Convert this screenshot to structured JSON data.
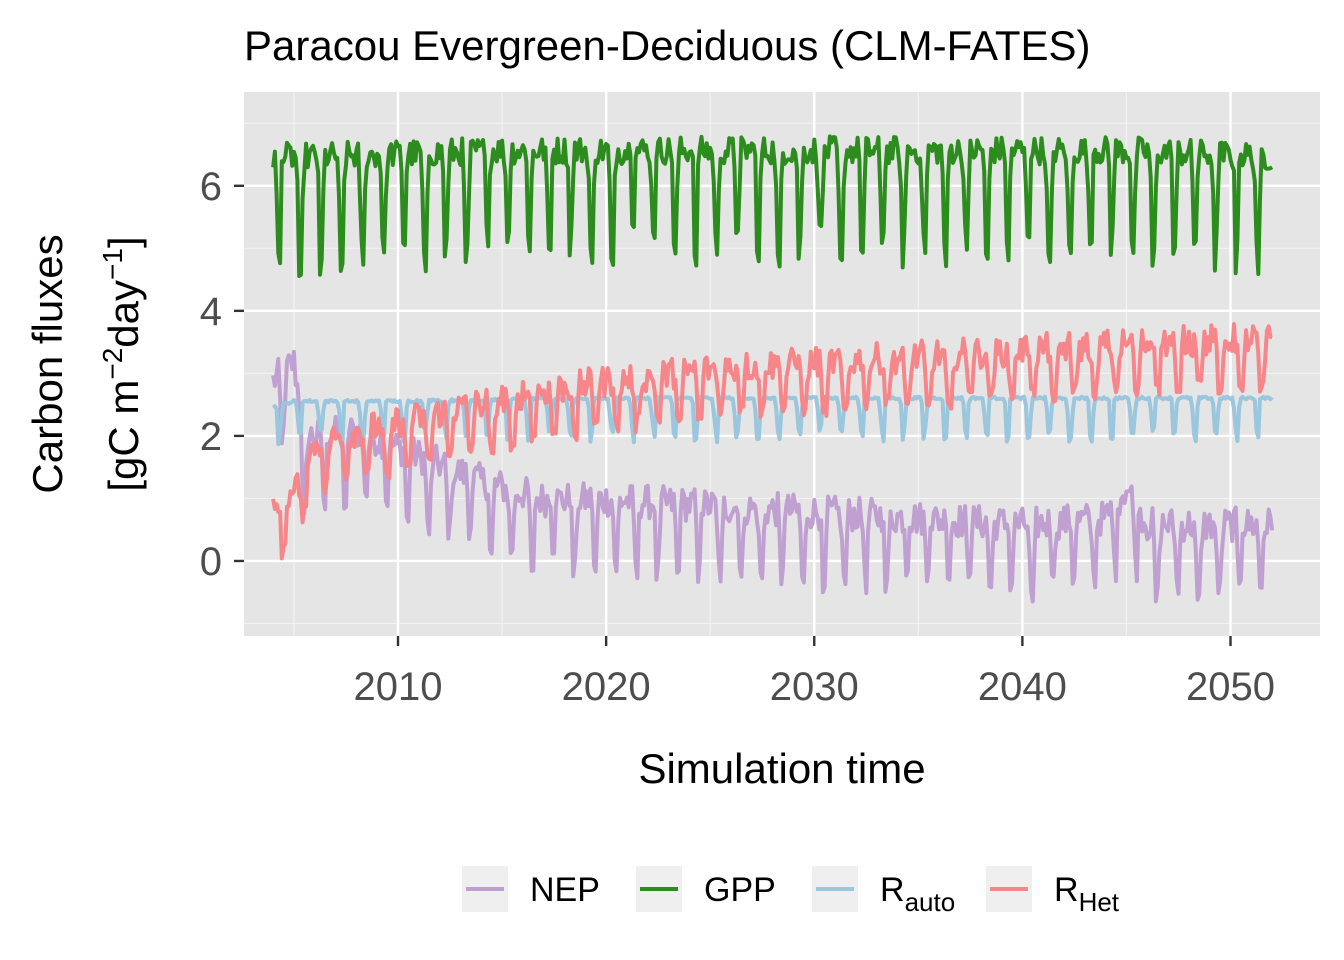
{
  "chart_data": {
    "type": "line",
    "title": "Paracou Evergreen-Deciduous (CLM-FATES)",
    "xlabel": "Simulation time",
    "ylabel_line1": "Carbon fluxes",
    "ylabel_line2_prefix": "[gC m",
    "ylabel_sup1": "−2",
    "ylabel_mid": "day",
    "ylabel_sup2": "−1",
    "ylabel_suffix": "]",
    "xlim": [
      2002.6,
      2054.3
    ],
    "ylim": [
      -1.2,
      7.5
    ],
    "x_ticks": [
      2010,
      2020,
      2030,
      2040,
      2050
    ],
    "x_minor": [
      2005,
      2015,
      2025,
      2035,
      2045
    ],
    "y_ticks": [
      0,
      2,
      4,
      6
    ],
    "y_minor": [
      -1,
      1,
      3,
      5,
      7
    ],
    "x_tick_labels": [
      "2010",
      "2020",
      "2030",
      "2040",
      "2050"
    ],
    "y_tick_labels": [
      "0",
      "2",
      "4",
      "6"
    ],
    "grid": true,
    "legend_position": "bottom",
    "x_start": 2004.0,
    "x_end": 2052.0,
    "points_per_year": 12,
    "series": [
      {
        "name": "NEP",
        "color": "#bfa0d0",
        "label_main": "NEP",
        "label_sub": "",
        "anchors": [
          [
            2004.0,
            2.8
          ],
          [
            2005.0,
            3.1
          ],
          [
            2005.5,
            1.9
          ],
          [
            2008.0,
            2.0
          ],
          [
            2011.0,
            1.6
          ],
          [
            2014.0,
            1.2
          ],
          [
            2017.0,
            0.9
          ],
          [
            2020.0,
            0.9
          ],
          [
            2025.0,
            0.8
          ],
          [
            2030.0,
            0.7
          ],
          [
            2035.0,
            0.6
          ],
          [
            2040.0,
            0.5
          ],
          [
            2044.0,
            0.6
          ],
          [
            2045.0,
            1.1
          ],
          [
            2046.0,
            0.5
          ],
          [
            2052.0,
            0.5
          ]
        ],
        "amp_up": 0.55,
        "amp_down": 1.2,
        "phase": 0.45
      },
      {
        "name": "GPP",
        "color": "#2d8c1e",
        "label_main": "GPP",
        "label_sub": "",
        "anchors": [
          [
            2004.0,
            6.4
          ],
          [
            2006.0,
            6.4
          ],
          [
            2015.0,
            6.5
          ],
          [
            2025.0,
            6.5
          ],
          [
            2035.0,
            6.5
          ],
          [
            2045.0,
            6.5
          ],
          [
            2052.0,
            6.4
          ]
        ],
        "amp_up": 0.45,
        "amp_down": 1.85,
        "phase": 0.3
      },
      {
        "name": "R_auto",
        "color": "#9ac6de",
        "label_main": "R",
        "label_sub": "auto",
        "anchors": [
          [
            2004.0,
            2.45
          ],
          [
            2005.0,
            2.55
          ],
          [
            2010.0,
            2.55
          ],
          [
            2020.0,
            2.6
          ],
          [
            2030.0,
            2.6
          ],
          [
            2040.0,
            2.6
          ],
          [
            2052.0,
            2.6
          ]
        ],
        "amp_up": 0.04,
        "amp_down": 0.7,
        "phase": 0.3
      },
      {
        "name": "R_Het",
        "color": "#f6868a",
        "label_main": "R",
        "label_sub": "Het",
        "anchors": [
          [
            2004.0,
            0.7
          ],
          [
            2005.0,
            1.0
          ],
          [
            2006.0,
            1.8
          ],
          [
            2008.0,
            2.0
          ],
          [
            2012.0,
            2.3
          ],
          [
            2016.0,
            2.6
          ],
          [
            2020.0,
            2.8
          ],
          [
            2025.0,
            3.0
          ],
          [
            2030.0,
            3.1
          ],
          [
            2035.0,
            3.2
          ],
          [
            2040.0,
            3.3
          ],
          [
            2045.0,
            3.4
          ],
          [
            2052.0,
            3.5
          ]
        ],
        "amp_up": 0.5,
        "amp_down": 0.8,
        "phase": 0.5
      }
    ]
  }
}
